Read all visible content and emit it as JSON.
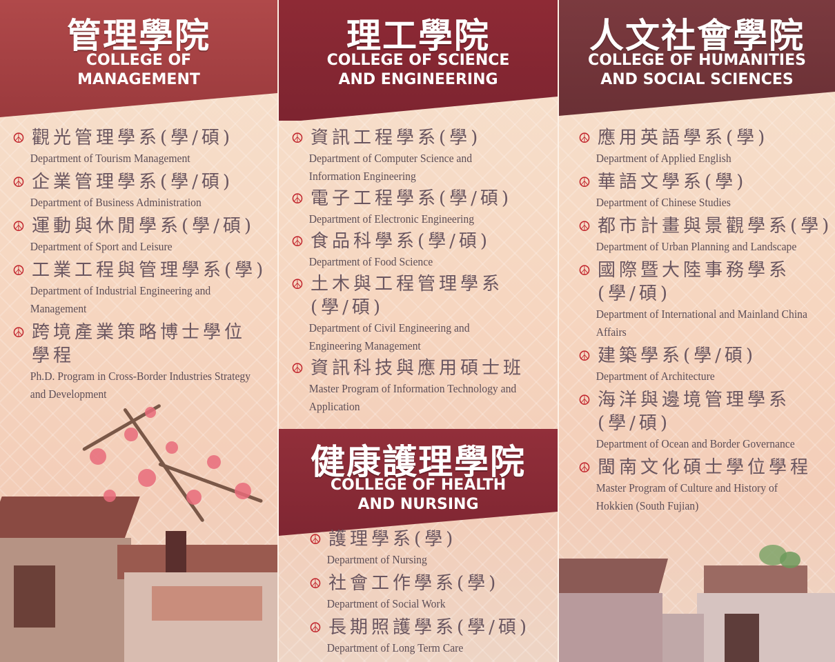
{
  "colleges": {
    "management": {
      "title_zh": "管理學院",
      "title_en": "COLLEGE OF\nMANAGEMENT",
      "departments": [
        {
          "zh": "觀光管理學系(學/碩)",
          "en": "Department of Tourism Management"
        },
        {
          "zh": "企業管理學系(學/碩)",
          "en": "Department of Business Administration"
        },
        {
          "zh": "運動與休閒學系(學/碩)",
          "en": "Department of Sport and Leisure"
        },
        {
          "zh": "工業工程與管理學系(學)",
          "en": "Department of Industrial Engineering and Management"
        },
        {
          "zh": "跨境產業策略博士學位學程",
          "en": "Ph.D. Program in Cross-Border Industries Strategy and Development"
        }
      ]
    },
    "science": {
      "title_zh": "理工學院",
      "title_en": "COLLEGE OF SCIENCE\nAND ENGINEERING",
      "departments": [
        {
          "zh": "資訊工程學系(學)",
          "en": "Department of Computer Science and Information Engineering"
        },
        {
          "zh": "電子工程學系(學/碩)",
          "en": "Department of Electronic Engineering"
        },
        {
          "zh": "食品科學系(學/碩)",
          "en": "Department of Food Science"
        },
        {
          "zh": "土木與工程管理學系(學/碩)",
          "en": "Department of Civil Engineering and Engineering Management"
        },
        {
          "zh": "資訊科技與應用碩士班",
          "en": "Master Program of Information Technology and Application"
        }
      ]
    },
    "health": {
      "title_zh": "健康護理學院",
      "title_en": "COLLEGE OF HEALTH\nAND NURSING",
      "departments": [
        {
          "zh": "護理學系(學)",
          "en": "Department of Nursing"
        },
        {
          "zh": "社會工作學系(學)",
          "en": "Department of Social Work"
        },
        {
          "zh": "長期照護學系(學/碩)",
          "en": "Department of Long Term Care"
        }
      ]
    },
    "humanities": {
      "title_zh": "人文社會學院",
      "title_en": "COLLEGE OF HUMANITIES\nAND SOCIAL SCIENCES",
      "departments": [
        {
          "zh": "應用英語學系(學)",
          "en": "Department of Applied English"
        },
        {
          "zh": "華語文學系(學)",
          "en": "Department of Chinese Studies"
        },
        {
          "zh": "都市計畫與景觀學系(學)",
          "en": "Department of Urban Planning and Landscape"
        },
        {
          "zh": "國際暨大陸事務學系(學/碩)",
          "en": "Department of International and Mainland China Affairs"
        },
        {
          "zh": "建築學系(學/碩)",
          "en": "Department of Architecture"
        },
        {
          "zh": "海洋與邊境管理學系(學/碩)",
          "en": "Department of Ocean and Border Governance"
        },
        {
          "zh": "閩南文化碩士學位學程",
          "en": "Master Program of Culture and History of Hokkien (South Fujian)"
        }
      ]
    }
  },
  "bullet_icon": "peace-icon",
  "bullet_glyph": "☮",
  "colors": {
    "bullet": "#c0242c",
    "header_red": "#9b3a3d",
    "text": "#6a5660"
  }
}
